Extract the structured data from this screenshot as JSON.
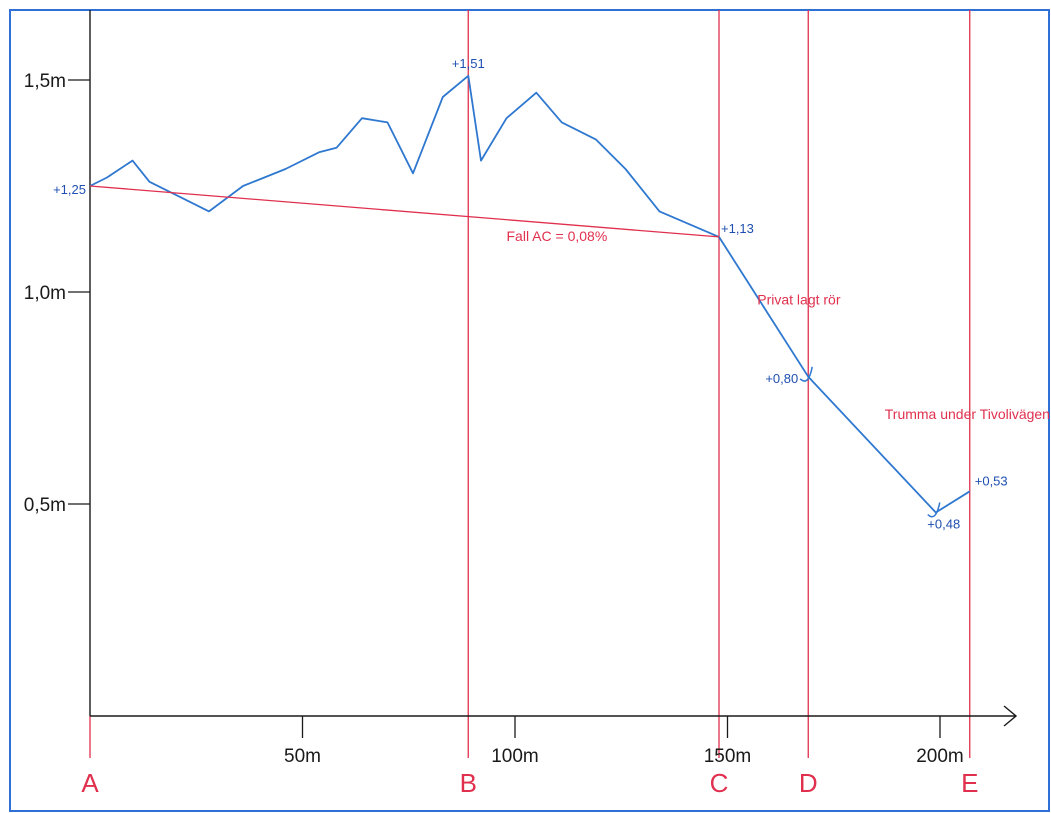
{
  "colors": {
    "frame": "#2f6fd6",
    "axis": "#1a1a1a",
    "profile": "#2f78d0",
    "red": "#e0304e",
    "label_blue": "#1f4fb0"
  },
  "chart_data": {
    "type": "line",
    "xlim": [
      0,
      222
    ],
    "ylim": [
      0,
      1.66
    ],
    "y_ticks": [
      {
        "value": 0.5,
        "label": "0,5m"
      },
      {
        "value": 1.0,
        "label": "1,0m"
      },
      {
        "value": 1.5,
        "label": "1,5m"
      }
    ],
    "x_ticks": [
      {
        "value": 50,
        "label": "50m"
      },
      {
        "value": 100,
        "label": "100m"
      },
      {
        "value": 150,
        "label": "150m"
      },
      {
        "value": 200,
        "label": "200m"
      }
    ],
    "stations": [
      {
        "name": "A",
        "x": 0
      },
      {
        "name": "B",
        "x": 89
      },
      {
        "name": "C",
        "x": 148
      },
      {
        "name": "D",
        "x": 169
      },
      {
        "name": "E",
        "x": 207
      }
    ],
    "series": [
      {
        "x": [
          0,
          4,
          10,
          14,
          22,
          28,
          36,
          46,
          54,
          58,
          64,
          70,
          76,
          83,
          89,
          92,
          98,
          105,
          111,
          119,
          126,
          134,
          148
        ],
        "y": [
          1.25,
          1.27,
          1.31,
          1.26,
          1.22,
          1.19,
          1.25,
          1.29,
          1.33,
          1.34,
          1.41,
          1.4,
          1.28,
          1.46,
          1.51,
          1.31,
          1.41,
          1.47,
          1.4,
          1.36,
          1.29,
          1.19,
          1.13
        ]
      },
      {
        "x": [
          148,
          169,
          199,
          207
        ],
        "y": [
          1.13,
          0.8,
          0.48,
          0.53
        ]
      },
      {
        "x": [
          0,
          148
        ],
        "y": [
          1.25,
          1.13
        ]
      }
    ],
    "point_labels": [
      {
        "x": 0,
        "y": 1.25,
        "text": "+1,25"
      },
      {
        "x": 89,
        "y": 1.51,
        "text": "+1,51"
      },
      {
        "x": 148,
        "y": 1.13,
        "text": "+1,13"
      },
      {
        "x": 169,
        "y": 0.8,
        "text": "+0,80"
      },
      {
        "x": 199,
        "y": 0.48,
        "text": "+0,48"
      },
      {
        "x": 207,
        "y": 0.53,
        "text": "+0,53"
      }
    ],
    "annotations": [
      {
        "text": "Fall AC = 0,08%",
        "x": 98,
        "y": 1.12
      },
      {
        "text": "Privat lagt rör",
        "x": 157,
        "y": 0.97
      },
      {
        "text": "Trumma under Tivolivägen",
        "x": 187,
        "y": 0.7
      }
    ]
  }
}
